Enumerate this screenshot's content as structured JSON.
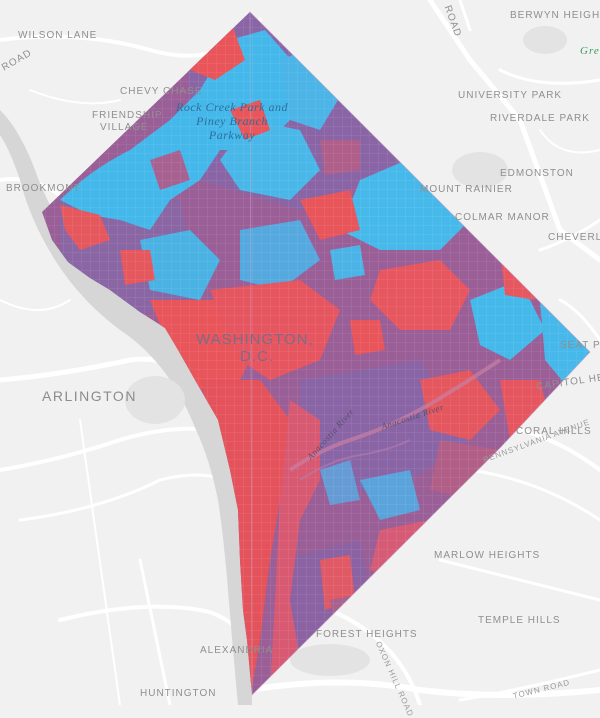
{
  "map": {
    "region": "Washington, D.C.",
    "colors": {
      "background": "#f1f1f1",
      "road": "#ffffff",
      "water": "#d7d7d7",
      "red": "#e8555a",
      "blue": "#44b8ea",
      "purple": "#8a65a6",
      "mixed": "#b15f86"
    },
    "labels": {
      "wilson_lane": "WILSON LANE",
      "road_top": "ROAD",
      "berwyn_heights": "BERWYN HEIGHTS",
      "green": "Gree",
      "chevy_chase": "CHEVY CHASE",
      "university_park": "UNIVERSITY PARK",
      "friendship_village_1": "FRIENDSHIP",
      "friendship_village_2": "VILLAGE",
      "riverdale_park": "RIVERDALE PARK",
      "rock_creek_1": "Rock Creek Park and",
      "rock_creek_2": "Piney Branch",
      "rock_creek_3": "Parkway",
      "brookmont": "BROOKMONT",
      "mount_rainier": "MOUNT RAINIER",
      "edmonston": "EDMONSTON",
      "colmar_manor": "COLMAR MANOR",
      "cheverly": "CHEVERLY",
      "washington": "WASHINGTON,",
      "dc": "D.C.",
      "seat_pleasant": "SEAT PLE",
      "capitol_heights": "CAPITOL HEIG",
      "arlington": "ARLINGTON",
      "anacostia_1": "Anacostia River",
      "anacostia_2": "Anacostia River",
      "coral_hills": "CORAL HILLS",
      "pennsylvania_avenue": "PENNSYLVANIA AVENUE",
      "marlow_heights": "MARLOW HEIGHTS",
      "temple_hills": "TEMPLE HILLS",
      "forest_heights": "FOREST HEIGHTS",
      "alexandria": "ALEXANDRIA",
      "oxon_hill_road": "OXON HILL ROAD",
      "huntington": "HUNTINGTON",
      "town_road": "TOWN ROAD"
    }
  }
}
